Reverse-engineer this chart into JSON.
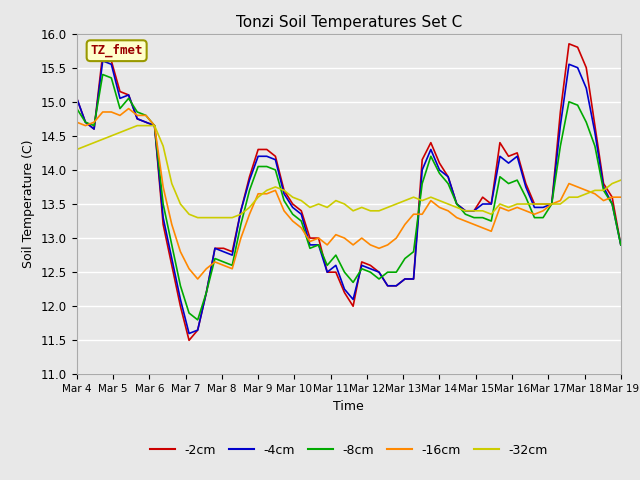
{
  "title": "Tonzi Soil Temperatures Set C",
  "xlabel": "Time",
  "ylabel": "Soil Temperature (C)",
  "ylim": [
    11.0,
    16.0
  ],
  "yticks": [
    11.0,
    11.5,
    12.0,
    12.5,
    13.0,
    13.5,
    14.0,
    14.5,
    15.0,
    15.5,
    16.0
  ],
  "background_color": "#e8e8e8",
  "annotation_text": "TZ_fmet",
  "annotation_bg": "#ffffcc",
  "annotation_border": "#999900",
  "annotation_text_color": "#990000",
  "legend_entries": [
    "-2cm",
    "-4cm",
    "-8cm",
    "-16cm",
    "-32cm"
  ],
  "line_colors": [
    "#cc0000",
    "#0000cc",
    "#00aa00",
    "#ff8800",
    "#cccc00"
  ],
  "xtick_labels": [
    "Mar 4",
    "Mar 5",
    "Mar 6",
    "Mar 7",
    "Mar 8",
    "Mar 9",
    "Mar 10",
    "Mar 11",
    "Mar 12",
    "Mar 13",
    "Mar 14",
    "Mar 15",
    "Mar 16",
    "Mar 17",
    "Mar 18",
    "Mar 19"
  ],
  "series": {
    "neg2cm": [
      15.05,
      14.7,
      14.6,
      15.7,
      15.6,
      15.15,
      15.1,
      14.75,
      14.7,
      14.65,
      13.2,
      12.6,
      12.0,
      11.5,
      11.65,
      12.2,
      12.85,
      12.85,
      12.8,
      13.4,
      13.9,
      14.3,
      14.3,
      14.2,
      13.7,
      13.5,
      13.4,
      13.0,
      13.0,
      12.5,
      12.5,
      12.2,
      12.0,
      12.65,
      12.6,
      12.5,
      12.3,
      12.3,
      12.4,
      12.4,
      14.15,
      14.4,
      14.1,
      13.9,
      13.5,
      13.4,
      13.4,
      13.6,
      13.5,
      14.4,
      14.2,
      14.25,
      13.8,
      13.5,
      13.5,
      13.5,
      14.85,
      15.85,
      15.8,
      15.5,
      14.65,
      13.8,
      13.6,
      12.9
    ],
    "neg4cm": [
      15.05,
      14.7,
      14.6,
      15.6,
      15.55,
      15.05,
      15.1,
      14.75,
      14.7,
      14.65,
      13.3,
      12.7,
      12.1,
      11.6,
      11.65,
      12.2,
      12.85,
      12.8,
      12.75,
      13.4,
      13.85,
      14.2,
      14.2,
      14.15,
      13.65,
      13.45,
      13.35,
      12.9,
      12.9,
      12.5,
      12.6,
      12.25,
      12.1,
      12.6,
      12.55,
      12.5,
      12.3,
      12.3,
      12.4,
      12.4,
      14.0,
      14.3,
      14.0,
      13.9,
      13.5,
      13.4,
      13.4,
      13.5,
      13.5,
      14.2,
      14.1,
      14.2,
      13.75,
      13.45,
      13.45,
      13.5,
      14.65,
      15.55,
      15.5,
      15.2,
      14.55,
      13.75,
      13.5,
      12.9
    ],
    "neg8cm": [
      14.9,
      14.7,
      14.65,
      15.4,
      15.35,
      14.9,
      15.05,
      14.85,
      14.8,
      14.65,
      13.5,
      12.9,
      12.3,
      11.9,
      11.8,
      12.2,
      12.7,
      12.65,
      12.6,
      13.2,
      13.7,
      14.05,
      14.05,
      14.0,
      13.55,
      13.35,
      13.25,
      12.85,
      12.9,
      12.6,
      12.75,
      12.5,
      12.35,
      12.55,
      12.5,
      12.4,
      12.5,
      12.5,
      12.7,
      12.8,
      13.8,
      14.2,
      13.95,
      13.8,
      13.5,
      13.35,
      13.3,
      13.3,
      13.25,
      13.9,
      13.8,
      13.85,
      13.6,
      13.3,
      13.3,
      13.5,
      14.35,
      15.0,
      14.95,
      14.7,
      14.35,
      13.7,
      13.5,
      12.9
    ],
    "neg16cm": [
      14.7,
      14.65,
      14.7,
      14.85,
      14.85,
      14.8,
      14.9,
      14.8,
      14.8,
      14.65,
      13.75,
      13.2,
      12.8,
      12.55,
      12.4,
      12.55,
      12.65,
      12.6,
      12.55,
      13.0,
      13.35,
      13.65,
      13.65,
      13.7,
      13.4,
      13.25,
      13.15,
      12.95,
      13.0,
      12.9,
      13.05,
      13.0,
      12.9,
      13.0,
      12.9,
      12.85,
      12.9,
      13.0,
      13.2,
      13.35,
      13.35,
      13.55,
      13.45,
      13.4,
      13.3,
      13.25,
      13.2,
      13.15,
      13.1,
      13.45,
      13.4,
      13.45,
      13.4,
      13.35,
      13.4,
      13.5,
      13.55,
      13.8,
      13.75,
      13.7,
      13.65,
      13.55,
      13.6,
      13.6
    ],
    "neg32cm": [
      14.3,
      14.35,
      14.4,
      14.45,
      14.5,
      14.55,
      14.6,
      14.65,
      14.65,
      14.65,
      14.35,
      13.8,
      13.5,
      13.35,
      13.3,
      13.3,
      13.3,
      13.3,
      13.3,
      13.35,
      13.45,
      13.6,
      13.7,
      13.75,
      13.7,
      13.6,
      13.55,
      13.45,
      13.5,
      13.45,
      13.55,
      13.5,
      13.4,
      13.45,
      13.4,
      13.4,
      13.45,
      13.5,
      13.55,
      13.6,
      13.55,
      13.6,
      13.55,
      13.5,
      13.45,
      13.4,
      13.4,
      13.4,
      13.35,
      13.5,
      13.45,
      13.5,
      13.5,
      13.5,
      13.5,
      13.5,
      13.5,
      13.6,
      13.6,
      13.65,
      13.7,
      13.7,
      13.8,
      13.85
    ]
  }
}
